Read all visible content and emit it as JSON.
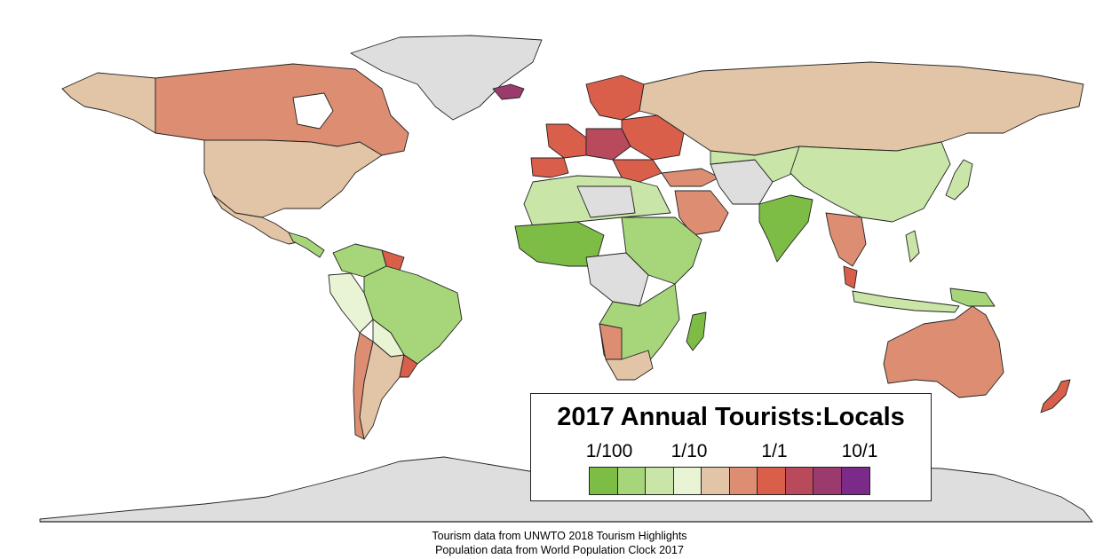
{
  "legend": {
    "title": "2017 Annual Tourists:Locals",
    "ticks": [
      "1/100",
      "1/10",
      "1/1",
      "10/1"
    ],
    "colors": [
      "#7dbd45",
      "#a6d57a",
      "#c9e6a8",
      "#e8f4d4",
      "#e2c4a6",
      "#dd8e72",
      "#d95f4b",
      "#b94a5c",
      "#9a3a6d",
      "#7b2a8a"
    ]
  },
  "source": {
    "line1": "Tourism data from UNWTO 2018 Tourism Highlights",
    "line2": "Population data from World Population Clock 2017"
  },
  "map_colors": {
    "no_data": "#dedede",
    "ocean": "#ffffff",
    "border": "#222222"
  }
}
